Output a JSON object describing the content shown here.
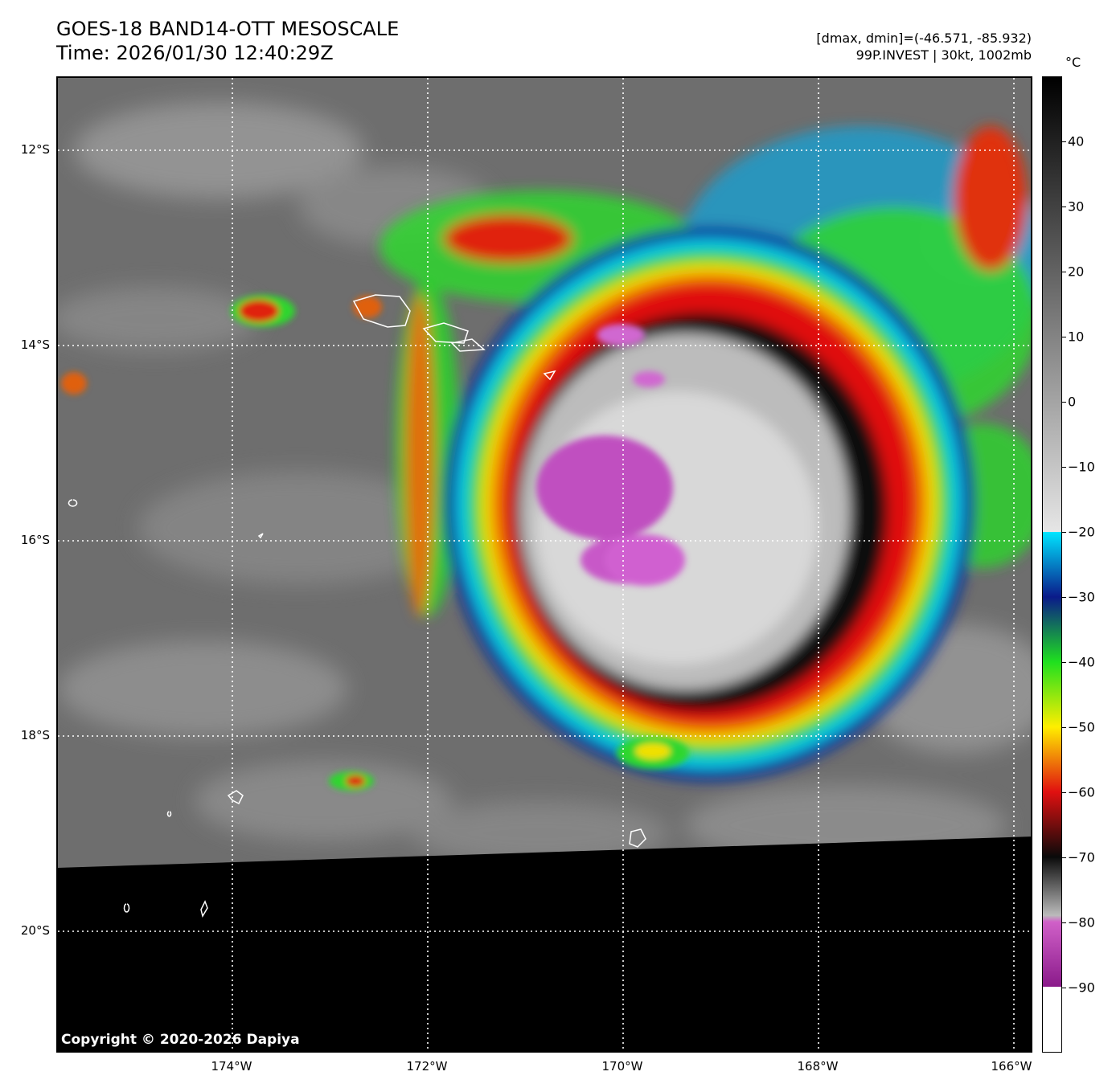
{
  "header": {
    "title_line1": "GOES-18 BAND14-OTT MESOSCALE",
    "title_line2": "Time: 2026/01/30 12:40:29Z",
    "info_line1": "[dmax, dmin]=(-46.571, -85.932)",
    "info_line2": "99P.INVEST | 30kt, 1002mb"
  },
  "map": {
    "lat_labels": [
      "12°S",
      "14°S",
      "16°S",
      "18°S",
      "20°S"
    ],
    "lon_labels": [
      "174°W",
      "172°W",
      "170°W",
      "168°W",
      "166°W"
    ],
    "copyright": "Copyright © 2020-2026 Dapiya",
    "gridlines": "dotted-white",
    "features": [
      "cloud-top-brightness-temperature",
      "coastline-outlines",
      "no-data-region-bottom"
    ]
  },
  "colorbar": {
    "unit": "°C",
    "tick_labels": [
      "40",
      "30",
      "20",
      "10",
      "0",
      "−10",
      "−20",
      "−30",
      "−40",
      "−50",
      "−60",
      "−70",
      "−80",
      "−90"
    ],
    "range": [
      -100,
      50
    ],
    "colors": {
      "warm": "#000000",
      "cold_gray": "#e6e6e6",
      "cyan": "#00e5ff",
      "blue": "#0a1a8a",
      "green": "#1fe01f",
      "yellow": "#ffee00",
      "red": "#e01010",
      "black_band": "#0a0a0a",
      "magenta": "#d060c8",
      "purple": "#8a1a8a",
      "white": "#ffffff"
    }
  }
}
